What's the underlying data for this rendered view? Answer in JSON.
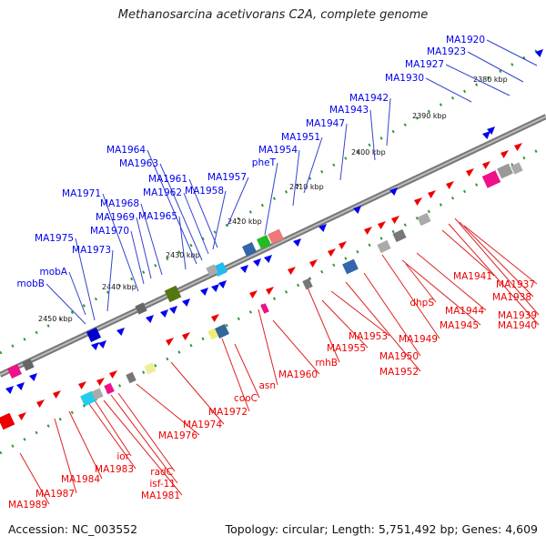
{
  "title": "Methanosarcina acetivorans C2A, complete genome",
  "footer": {
    "accession": "Accession: NC_003552",
    "summary": "Topology: circular; Length: 5,751,492 bp; Genes: 4,609"
  },
  "colors": {
    "forward_strand": "#0000ee",
    "reverse_strand": "#ee0000",
    "genome_line": "#888888",
    "scale_dots": "#339933"
  },
  "scale_labels": [
    "2380 kbp",
    "2390 kbp",
    "2400 kbp",
    "2410 kbp",
    "2420 kbp",
    "2430 kbp",
    "2440 kbp",
    "2450 kbp"
  ],
  "forward_genes": [
    "MA1920",
    "MA1923",
    "MA1927",
    "MA1930",
    "MA1942",
    "MA1943",
    "MA1947",
    "MA1951",
    "MA1954",
    "pheT",
    "MA1957",
    "MA1958",
    "MA1961",
    "MA1962",
    "MA1963",
    "MA1964",
    "MA1965",
    "MA1968",
    "MA1969",
    "MA1970",
    "MA1971",
    "MA1973",
    "MA1975",
    "mobA",
    "mobB"
  ],
  "reverse_genes": [
    "MA1937",
    "MA1938",
    "MA1939",
    "MA1940",
    "MA1941",
    "MA1944",
    "MA1945",
    "dhpS",
    "MA1949",
    "MA1950",
    "MA1952",
    "MA1953",
    "MA1955",
    "rnhB",
    "MA1960",
    "asn",
    "cooC",
    "MA1972",
    "MA1974",
    "MA1976",
    "radC",
    "isf-11",
    "MA1981",
    "ior",
    "MA1983",
    "MA1984",
    "MA1987",
    "MA1989"
  ]
}
